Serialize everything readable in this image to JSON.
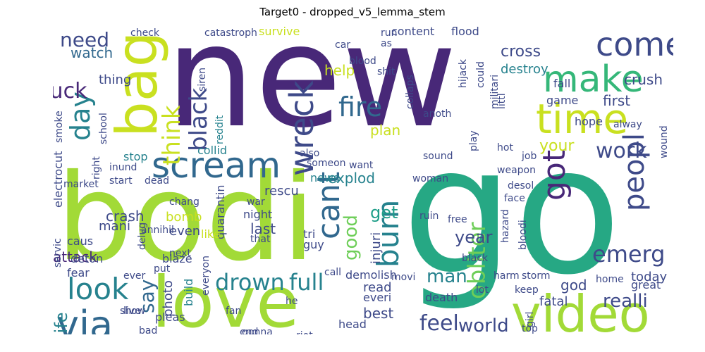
{
  "title": "Target0 - dropped_v5_lemma_stem",
  "palette": {
    "purple": "#482878",
    "indigo": "#3e4a89",
    "blue": "#31688e",
    "teal": "#26828e",
    "green": "#1f9e89",
    "seagreen": "#35b779",
    "lime": "#6ece58",
    "yellowgreen": "#b5de2b",
    "yellow": "#e4e419"
  },
  "words": [
    {
      "text": "new",
      "color": "#482878"
    },
    {
      "text": "go",
      "color": "#26a884"
    },
    {
      "text": "bodi",
      "color": "#a2da37"
    },
    {
      "text": "love",
      "color": "#a2da37"
    },
    {
      "text": "bag",
      "color": "#c9e020"
    },
    {
      "text": "video",
      "color": "#a2da37"
    },
    {
      "text": "time",
      "color": "#c9e020"
    },
    {
      "text": "make",
      "color": "#35b779"
    },
    {
      "text": "come",
      "color": "#3e4a89"
    },
    {
      "text": "scream",
      "color": "#31688e"
    },
    {
      "text": "wreck",
      "color": "#3e4a89"
    },
    {
      "text": "look",
      "color": "#26828e"
    },
    {
      "text": "via",
      "color": "#31688e"
    },
    {
      "text": "day",
      "color": "#26828e"
    },
    {
      "text": "fuck",
      "color": "#482878"
    },
    {
      "text": "need",
      "color": "#3e4a89"
    },
    {
      "text": "think",
      "color": "#c9e020"
    },
    {
      "text": "black",
      "color": "#3e4a89"
    },
    {
      "text": "fire",
      "color": "#31688e"
    },
    {
      "text": "cant",
      "color": "#31688e"
    },
    {
      "text": "burn",
      "color": "#26828e"
    },
    {
      "text": "got",
      "color": "#482878"
    },
    {
      "text": "peopl",
      "color": "#3e4a89"
    },
    {
      "text": "work",
      "color": "#3e4a89"
    },
    {
      "text": "emerg",
      "color": "#3e4a89"
    },
    {
      "text": "obliter",
      "color": "#6ece58"
    },
    {
      "text": "drown",
      "color": "#26828e"
    },
    {
      "text": "full",
      "color": "#26828e"
    },
    {
      "text": "feel",
      "color": "#3e4a89"
    },
    {
      "text": "world",
      "color": "#3e4a89"
    },
    {
      "text": "say",
      "color": "#31688e"
    },
    {
      "text": "man",
      "color": "#26828e"
    },
    {
      "text": "year",
      "color": "#3e4a89"
    },
    {
      "text": "good",
      "color": "#6ece58"
    },
    {
      "text": "get",
      "color": "#1f9e89"
    },
    {
      "text": "realli",
      "color": "#3e4a89"
    },
    {
      "text": "life",
      "color": "#26828e"
    },
    {
      "text": "crash",
      "color": "#3e4a89"
    },
    {
      "text": "watch",
      "color": "#31688e"
    },
    {
      "text": "survive",
      "color": "#c9e020"
    },
    {
      "text": "cross",
      "color": "#3e4a89"
    },
    {
      "text": "destroy",
      "color": "#26828e"
    },
    {
      "text": "crush",
      "color": "#3e4a89"
    },
    {
      "text": "first",
      "color": "#3e4a89"
    },
    {
      "text": "game",
      "color": "#3e4a89"
    },
    {
      "text": "hope",
      "color": "#3e4a89"
    },
    {
      "text": "fall",
      "color": "#3e4a89"
    },
    {
      "text": "today",
      "color": "#3e4a89"
    },
    {
      "text": "great",
      "color": "#3e4a89"
    },
    {
      "text": "fatal",
      "color": "#3e4a89"
    },
    {
      "text": "god",
      "color": "#3e4a89"
    },
    {
      "text": "help",
      "color": "#c9e020"
    },
    {
      "text": "plan",
      "color": "#c9e020"
    },
    {
      "text": "your",
      "color": "#c9e020"
    },
    {
      "text": "explod",
      "color": "#26828e"
    },
    {
      "text": "news",
      "color": "#26828e"
    },
    {
      "text": "rescu",
      "color": "#3e4a89"
    },
    {
      "text": "stop",
      "color": "#26828e"
    },
    {
      "text": "collid",
      "color": "#26828e"
    },
    {
      "text": "thing",
      "color": "#3e4a89"
    },
    {
      "text": "mani",
      "color": "#3e4a89"
    },
    {
      "text": "bomb",
      "color": "#c9e020"
    },
    {
      "text": "even",
      "color": "#3e4a89"
    },
    {
      "text": "last",
      "color": "#3e4a89"
    },
    {
      "text": "night",
      "color": "#3e4a89"
    },
    {
      "text": "attack",
      "color": "#482878"
    },
    {
      "text": "content",
      "color": "#3e4a89"
    },
    {
      "text": "flood",
      "color": "#3e4a89"
    },
    {
      "text": "siren",
      "color": "#3e4a89"
    },
    {
      "text": "reddit",
      "color": "#26828e"
    },
    {
      "text": "injuri",
      "color": "#3e4a89"
    },
    {
      "text": "demolish",
      "color": "#3e4a89"
    },
    {
      "text": "read",
      "color": "#3e4a89"
    },
    {
      "text": "best",
      "color": "#3e4a89"
    },
    {
      "text": "everi",
      "color": "#3e4a89"
    },
    {
      "text": "head",
      "color": "#3e4a89"
    },
    {
      "text": "photo",
      "color": "#3e4a89"
    },
    {
      "text": "build",
      "color": "#26828e"
    },
    {
      "text": "pleas",
      "color": "#3e4a89"
    },
    {
      "text": "fear",
      "color": "#3e4a89"
    },
    {
      "text": "deton",
      "color": "#3e4a89"
    },
    {
      "text": "caus",
      "color": "#3e4a89"
    },
    {
      "text": "death",
      "color": "#3e4a89"
    },
    {
      "text": "weapon",
      "color": "#3e4a89"
    },
    {
      "text": "job",
      "color": "#3e4a89"
    },
    {
      "text": "face",
      "color": "#3e4a89"
    },
    {
      "text": "desol",
      "color": "#3e4a89"
    },
    {
      "text": "blaze",
      "color": "#3e4a89"
    },
    {
      "text": "quarantin",
      "color": "#3e4a89"
    },
    {
      "text": "woman",
      "color": "#3e4a89"
    },
    {
      "text": "ruin",
      "color": "#3e4a89"
    },
    {
      "text": "top",
      "color": "#3e4a89"
    },
    {
      "text": "lot",
      "color": "#3e4a89"
    },
    {
      "text": "tri",
      "color": "#3e4a89"
    },
    {
      "text": "guy",
      "color": "#3e4a89"
    },
    {
      "text": "show",
      "color": "#3e4a89"
    },
    {
      "text": "ever",
      "color": "#3e4a89"
    },
    {
      "text": "like",
      "color": "#c9e020"
    },
    {
      "text": "wound",
      "color": "#3e4a89"
    },
    {
      "text": "start",
      "color": "#3e4a89"
    },
    {
      "text": "dead",
      "color": "#3e4a89"
    },
    {
      "text": "smoke",
      "color": "#3e4a89"
    },
    {
      "text": "school",
      "color": "#3e4a89"
    },
    {
      "text": "delug",
      "color": "#3e4a89"
    },
    {
      "text": "annihil",
      "color": "#3e4a89"
    },
    {
      "text": "servic",
      "color": "#3e4a89"
    },
    {
      "text": "electrocut",
      "color": "#3e4a89"
    },
    {
      "text": "market",
      "color": "#3e4a89"
    },
    {
      "text": "chang",
      "color": "#3e4a89"
    },
    {
      "text": "war",
      "color": "#3e4a89"
    },
    {
      "text": "that",
      "color": "#3e4a89"
    },
    {
      "text": "collaps",
      "color": "#3e4a89"
    },
    {
      "text": "blood",
      "color": "#3e4a89"
    },
    {
      "text": "anoth",
      "color": "#3e4a89"
    },
    {
      "text": "hijack",
      "color": "#3e4a89"
    },
    {
      "text": "could",
      "color": "#3e4a89"
    },
    {
      "text": "hot",
      "color": "#3e4a89"
    },
    {
      "text": "play",
      "color": "#3e4a89"
    },
    {
      "text": "run",
      "color": "#3e4a89"
    },
    {
      "text": "car",
      "color": "#3e4a89"
    },
    {
      "text": "catastroph",
      "color": "#3e4a89"
    },
    {
      "text": "check",
      "color": "#3e4a89"
    },
    {
      "text": "littl",
      "color": "#3e4a89"
    },
    {
      "text": "militari",
      "color": "#3e4a89"
    },
    {
      "text": "alway",
      "color": "#3e4a89"
    },
    {
      "text": "hazard",
      "color": "#3e4a89"
    },
    {
      "text": "bloodi",
      "color": "#3e4a89"
    },
    {
      "text": "black",
      "color": "#3e4a89"
    },
    {
      "text": "storm",
      "color": "#3e4a89"
    },
    {
      "text": "harm",
      "color": "#3e4a89"
    },
    {
      "text": "keep",
      "color": "#3e4a89"
    },
    {
      "text": "girl",
      "color": "#3e4a89"
    },
    {
      "text": "call",
      "color": "#3e4a89"
    },
    {
      "text": "movi",
      "color": "#3e4a89"
    },
    {
      "text": "he",
      "color": "#3e4a89"
    },
    {
      "text": "fan",
      "color": "#3e4a89"
    },
    {
      "text": "everyon",
      "color": "#3e4a89"
    },
    {
      "text": "riot",
      "color": "#3e4a89"
    },
    {
      "text": "gonna",
      "color": "#3e4a89"
    },
    {
      "text": "bad",
      "color": "#3e4a89"
    },
    {
      "text": "live",
      "color": "#3e4a89"
    },
    {
      "text": "next",
      "color": "#3e4a89"
    },
    {
      "text": "put",
      "color": "#3e4a89"
    },
    {
      "text": "also",
      "color": "#3e4a89"
    },
    {
      "text": "someon",
      "color": "#3e4a89"
    },
    {
      "text": "sound",
      "color": "#3e4a89"
    },
    {
      "text": "want",
      "color": "#3e4a89"
    },
    {
      "text": "inund",
      "color": "#3e4a89"
    },
    {
      "text": "right",
      "color": "#3e4a89"
    },
    {
      "text": "end",
      "color": "#3e4a89"
    },
    {
      "text": "free",
      "color": "#3e4a89"
    },
    {
      "text": "shit",
      "color": "#3e4a89"
    },
    {
      "text": "as",
      "color": "#3e4a89"
    },
    {
      "text": "home",
      "color": "#3e4a89"
    }
  ]
}
